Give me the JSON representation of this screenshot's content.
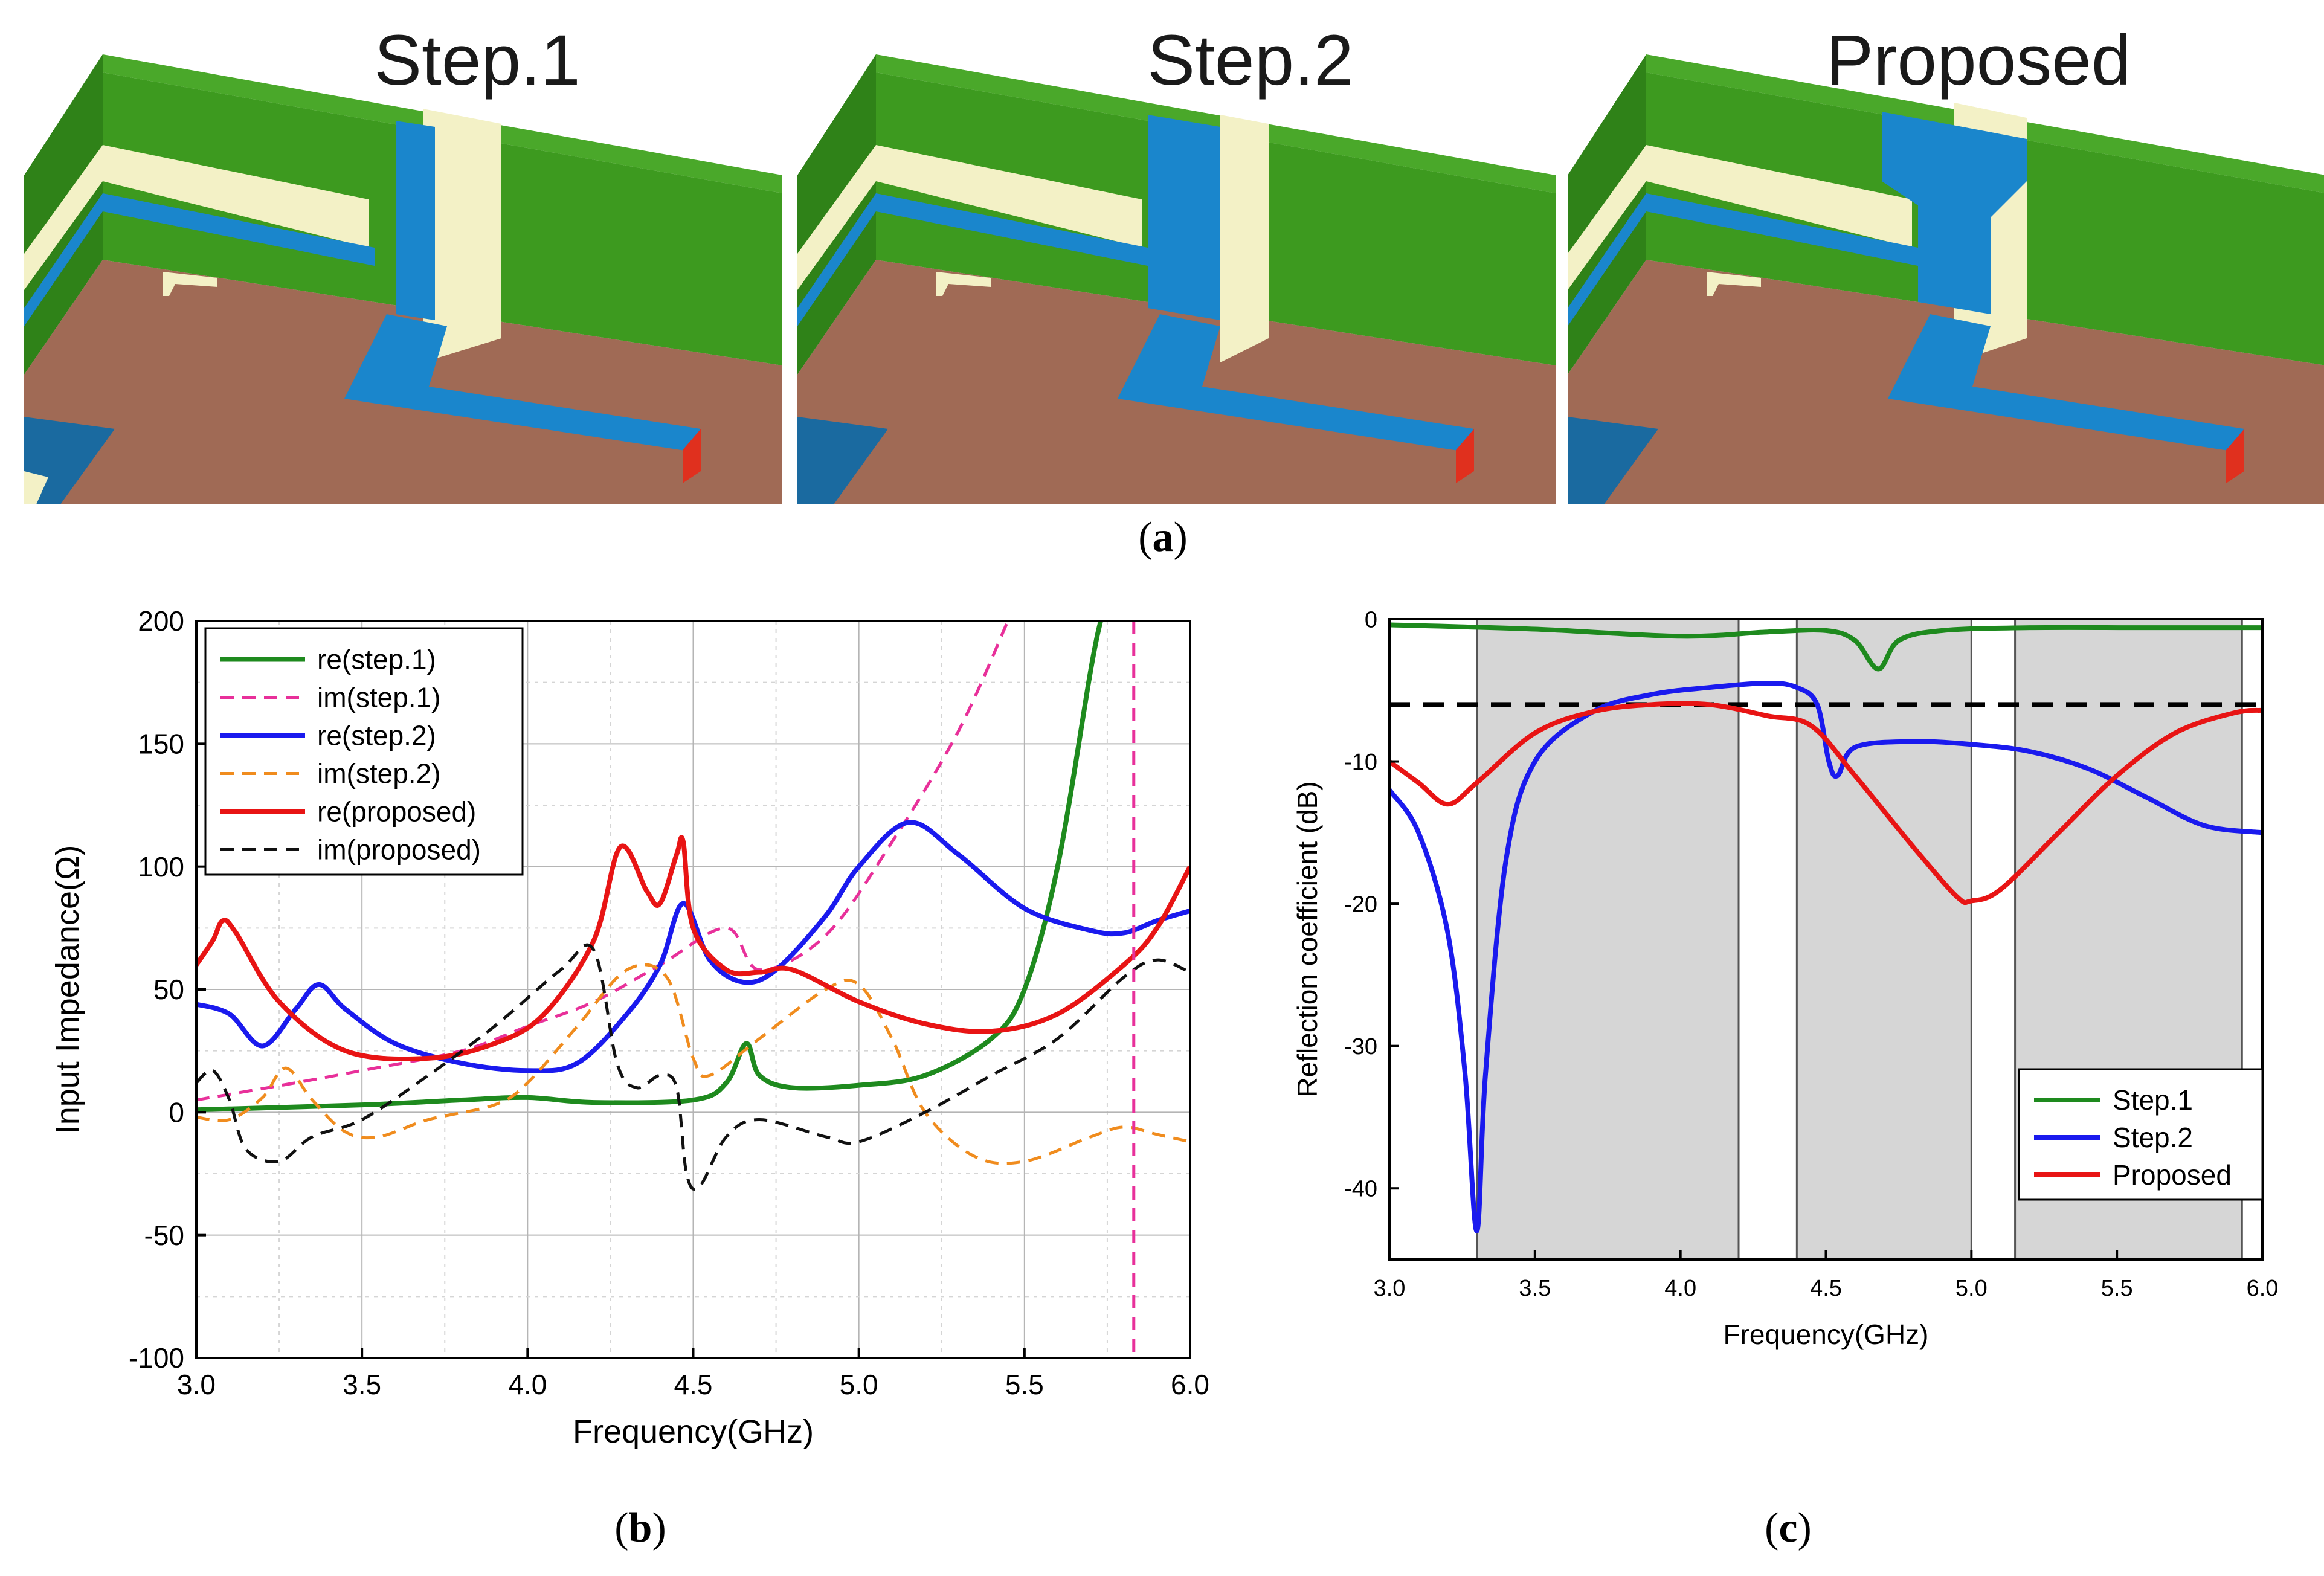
{
  "figure": {
    "panel_a": {
      "label_open": "(",
      "label_letter": "a",
      "label_close": ")",
      "renders": [
        {
          "title": "Step.1"
        },
        {
          "title": "Step.2"
        },
        {
          "title": "Proposed"
        }
      ],
      "colors": {
        "substrate": "#a06a55",
        "radiator": "#3d9a1f",
        "trace": "#1a86cc",
        "gap": "#f3f1c6",
        "port": "#e0301e"
      }
    },
    "panel_b_label": {
      "open": "(",
      "letter": "b",
      "close": ")"
    },
    "panel_c_label": {
      "open": "(",
      "letter": "c",
      "close": ")"
    }
  },
  "chart_data": [
    {
      "id": "impedance",
      "type": "line",
      "title": "",
      "xlabel": "Frequency(GHz)",
      "ylabel": "Input Impedance(Ω)",
      "xlim": [
        3.0,
        6.0
      ],
      "ylim": [
        -100,
        200
      ],
      "xticks": [
        "3.0",
        "3.5",
        "4.0",
        "4.5",
        "5.0",
        "5.5",
        "6.0"
      ],
      "yticks": [
        "200",
        "150",
        "100",
        "50",
        "0",
        "-50",
        "-100"
      ],
      "grid": true,
      "legend_position": "top-left",
      "series": [
        {
          "name": "re(step.1)",
          "color": "#1e8a1e",
          "dash": "solid",
          "points": [
            [
              3.0,
              1
            ],
            [
              3.5,
              3
            ],
            [
              3.8,
              5
            ],
            [
              4.0,
              6
            ],
            [
              4.2,
              4
            ],
            [
              4.5,
              5
            ],
            [
              4.6,
              12
            ],
            [
              4.66,
              28
            ],
            [
              4.7,
              15
            ],
            [
              4.8,
              10
            ],
            [
              5.0,
              11
            ],
            [
              5.2,
              15
            ],
            [
              5.4,
              30
            ],
            [
              5.5,
              50
            ],
            [
              5.6,
              100
            ],
            [
              5.7,
              180
            ],
            [
              5.73,
              200
            ]
          ]
        },
        {
          "name": "im(step.1)",
          "color": "#e8309a",
          "dash": "dashed",
          "points": [
            [
              3.0,
              5
            ],
            [
              3.3,
              12
            ],
            [
              3.5,
              17
            ],
            [
              3.8,
              25
            ],
            [
              4.0,
              35
            ],
            [
              4.2,
              45
            ],
            [
              4.4,
              60
            ],
            [
              4.6,
              75
            ],
            [
              4.7,
              58
            ],
            [
              4.9,
              72
            ],
            [
              5.1,
              110
            ],
            [
              5.3,
              155
            ],
            [
              5.45,
              200
            ]
          ]
        },
        {
          "name": "re(step.2)",
          "color": "#1a1aee",
          "dash": "solid",
          "points": [
            [
              3.0,
              44
            ],
            [
              3.1,
              40
            ],
            [
              3.2,
              27
            ],
            [
              3.3,
              42
            ],
            [
              3.37,
              52
            ],
            [
              3.45,
              42
            ],
            [
              3.6,
              28
            ],
            [
              3.8,
              20
            ],
            [
              4.0,
              17
            ],
            [
              4.15,
              20
            ],
            [
              4.3,
              40
            ],
            [
              4.4,
              60
            ],
            [
              4.47,
              85
            ],
            [
              4.55,
              62
            ],
            [
              4.65,
              53
            ],
            [
              4.75,
              58
            ],
            [
              4.9,
              80
            ],
            [
              5.0,
              100
            ],
            [
              5.15,
              118
            ],
            [
              5.3,
              105
            ],
            [
              5.5,
              83
            ],
            [
              5.7,
              74
            ],
            [
              5.8,
              73
            ],
            [
              5.9,
              78
            ],
            [
              6.0,
              82
            ]
          ]
        },
        {
          "name": "im(step.2)",
          "color": "#f08c1e",
          "dash": "dashed",
          "points": [
            [
              3.0,
              -2
            ],
            [
              3.1,
              -3
            ],
            [
              3.2,
              6
            ],
            [
              3.27,
              18
            ],
            [
              3.35,
              5
            ],
            [
              3.45,
              -8
            ],
            [
              3.55,
              -10
            ],
            [
              3.7,
              -3
            ],
            [
              3.9,
              3
            ],
            [
              4.0,
              12
            ],
            [
              4.15,
              35
            ],
            [
              4.3,
              58
            ],
            [
              4.42,
              55
            ],
            [
              4.5,
              22
            ],
            [
              4.55,
              15
            ],
            [
              4.7,
              30
            ],
            [
              4.9,
              50
            ],
            [
              5.0,
              52
            ],
            [
              5.1,
              30
            ],
            [
              5.2,
              0
            ],
            [
              5.35,
              -18
            ],
            [
              5.5,
              -20
            ],
            [
              5.7,
              -10
            ],
            [
              5.8,
              -6
            ],
            [
              5.9,
              -9
            ],
            [
              6.0,
              -12
            ]
          ]
        },
        {
          "name": "re(proposed)",
          "color": "#e81414",
          "dash": "solid",
          "points": [
            [
              3.0,
              60
            ],
            [
              3.05,
              70
            ],
            [
              3.08,
              78
            ],
            [
              3.12,
              73
            ],
            [
              3.25,
              45
            ],
            [
              3.45,
              25
            ],
            [
              3.7,
              22
            ],
            [
              3.9,
              28
            ],
            [
              4.05,
              40
            ],
            [
              4.2,
              70
            ],
            [
              4.28,
              108
            ],
            [
              4.36,
              90
            ],
            [
              4.4,
              85
            ],
            [
              4.45,
              105
            ],
            [
              4.47,
              110
            ],
            [
              4.5,
              75
            ],
            [
              4.6,
              58
            ],
            [
              4.7,
              57
            ],
            [
              4.8,
              58
            ],
            [
              5.0,
              45
            ],
            [
              5.2,
              36
            ],
            [
              5.4,
              33
            ],
            [
              5.6,
              40
            ],
            [
              5.8,
              60
            ],
            [
              5.9,
              75
            ],
            [
              6.0,
              100
            ]
          ]
        },
        {
          "name": "im(proposed)",
          "color": "#111111",
          "dash": "dashed",
          "points": [
            [
              3.0,
              12
            ],
            [
              3.05,
              17
            ],
            [
              3.1,
              5
            ],
            [
              3.15,
              -15
            ],
            [
              3.25,
              -20
            ],
            [
              3.35,
              -10
            ],
            [
              3.5,
              -3
            ],
            [
              3.7,
              15
            ],
            [
              3.9,
              35
            ],
            [
              4.1,
              58
            ],
            [
              4.2,
              66
            ],
            [
              4.27,
              20
            ],
            [
              4.33,
              10
            ],
            [
              4.4,
              15
            ],
            [
              4.45,
              10
            ],
            [
              4.48,
              -25
            ],
            [
              4.52,
              -30
            ],
            [
              4.6,
              -10
            ],
            [
              4.7,
              -3
            ],
            [
              4.9,
              -10
            ],
            [
              5.0,
              -12
            ],
            [
              5.2,
              0
            ],
            [
              5.4,
              15
            ],
            [
              5.6,
              30
            ],
            [
              5.8,
              55
            ],
            [
              5.9,
              62
            ],
            [
              6.0,
              57
            ]
          ]
        },
        {
          "name": "im(step.1) pole",
          "color": "#e8309a",
          "dash": "dashed",
          "legend": false,
          "points": [
            [
              5.83,
              200
            ],
            [
              5.83,
              -100
            ]
          ]
        }
      ]
    },
    {
      "id": "reflection",
      "type": "line",
      "title": "",
      "xlabel": "Frequency(GHz)",
      "ylabel": "Reflection coefficient (dB)",
      "xlim": [
        3.0,
        6.0
      ],
      "ylim": [
        -45,
        0
      ],
      "xticks": [
        "3.0",
        "3.5",
        "4.0",
        "4.5",
        "5.0",
        "5.5",
        "6.0"
      ],
      "yticks": [
        "0",
        "-10",
        "-20",
        "-30",
        "-40"
      ],
      "grid": false,
      "legend_position": "bottom-right",
      "shaded_bands": [
        [
          3.3,
          4.2
        ],
        [
          4.4,
          5.0
        ],
        [
          5.15,
          5.93
        ]
      ],
      "reference_line_db": -6,
      "series": [
        {
          "name": "Step.1",
          "color": "#1e8a1e",
          "dash": "solid",
          "points": [
            [
              3.0,
              -0.4
            ],
            [
              3.5,
              -0.7
            ],
            [
              4.0,
              -1.2
            ],
            [
              4.3,
              -0.9
            ],
            [
              4.5,
              -0.8
            ],
            [
              4.6,
              -1.5
            ],
            [
              4.68,
              -3.5
            ],
            [
              4.75,
              -1.5
            ],
            [
              4.9,
              -0.8
            ],
            [
              5.2,
              -0.6
            ],
            [
              5.6,
              -0.6
            ],
            [
              6.0,
              -0.6
            ]
          ]
        },
        {
          "name": "Step.2",
          "color": "#1a1aee",
          "dash": "solid",
          "points": [
            [
              3.0,
              -12
            ],
            [
              3.1,
              -15
            ],
            [
              3.2,
              -22
            ],
            [
              3.26,
              -32
            ],
            [
              3.3,
              -43
            ],
            [
              3.33,
              -32
            ],
            [
              3.4,
              -17
            ],
            [
              3.5,
              -10
            ],
            [
              3.7,
              -6.5
            ],
            [
              3.9,
              -5.3
            ],
            [
              4.1,
              -4.8
            ],
            [
              4.3,
              -4.5
            ],
            [
              4.4,
              -4.8
            ],
            [
              4.47,
              -6
            ],
            [
              4.51,
              -10
            ],
            [
              4.54,
              -11
            ],
            [
              4.6,
              -9
            ],
            [
              4.8,
              -8.6
            ],
            [
              5.0,
              -8.8
            ],
            [
              5.2,
              -9.3
            ],
            [
              5.4,
              -10.5
            ],
            [
              5.6,
              -12.5
            ],
            [
              5.8,
              -14.5
            ],
            [
              6.0,
              -15
            ]
          ]
        },
        {
          "name": "Proposed",
          "color": "#e81414",
          "dash": "solid",
          "points": [
            [
              3.0,
              -10
            ],
            [
              3.1,
              -11.5
            ],
            [
              3.2,
              -13
            ],
            [
              3.3,
              -11.5
            ],
            [
              3.5,
              -8
            ],
            [
              3.7,
              -6.5
            ],
            [
              3.9,
              -6
            ],
            [
              4.1,
              -6
            ],
            [
              4.3,
              -6.8
            ],
            [
              4.45,
              -7.5
            ],
            [
              4.6,
              -11
            ],
            [
              4.8,
              -16
            ],
            [
              4.95,
              -19.5
            ],
            [
              5.0,
              -19.8
            ],
            [
              5.1,
              -19
            ],
            [
              5.3,
              -15
            ],
            [
              5.5,
              -11
            ],
            [
              5.7,
              -8
            ],
            [
              5.9,
              -6.6
            ],
            [
              6.0,
              -6.4
            ]
          ]
        }
      ]
    }
  ]
}
